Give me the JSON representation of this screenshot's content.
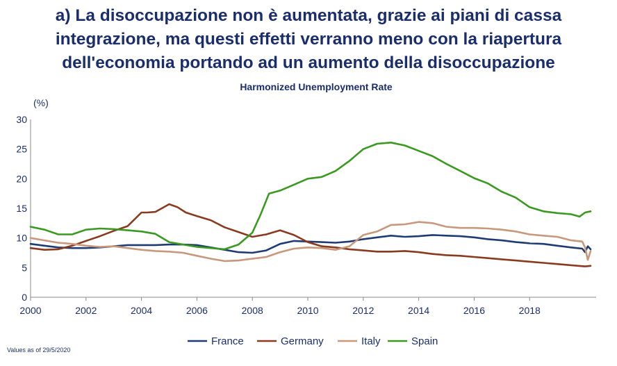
{
  "headline": {
    "line1": "a) La disoccupazione non è aumentata, grazie ai piani di cassa",
    "line2": "integrazione, ma questi effetti verranno meno con la riapertura",
    "line3": "dell'economia portando ad un aumento della disoccupazione"
  },
  "footnote": "Values as of 29/5/2020",
  "chart_data": {
    "type": "line",
    "title": "Harmonized Unemployment Rate",
    "ylabel": "(%)",
    "xlabel": "",
    "xlim": [
      2000,
      2020.4
    ],
    "ylim": [
      0,
      30
    ],
    "y_ticks": [
      0,
      5,
      10,
      15,
      20,
      25,
      30
    ],
    "x_ticks": [
      2000,
      2002,
      2004,
      2006,
      2008,
      2010,
      2012,
      2014,
      2016,
      2018
    ],
    "x_tick_labels": [
      "2000",
      "2002",
      "2004",
      "2006",
      "2008",
      "2010",
      "2012",
      "2014",
      "2016",
      "2018"
    ],
    "grid": false,
    "legend_position": "bottom",
    "series": [
      {
        "name": "France",
        "color": "#1f3b73",
        "x": [
          2000,
          2000.5,
          2001,
          2001.5,
          2002,
          2002.5,
          2003,
          2003.5,
          2004,
          2004.5,
          2005,
          2005.5,
          2006,
          2006.5,
          2007,
          2007.5,
          2008,
          2008.5,
          2009,
          2009.5,
          2010,
          2010.5,
          2011,
          2011.5,
          2012,
          2012.5,
          2013,
          2013.5,
          2014,
          2014.5,
          2015,
          2015.5,
          2016,
          2016.5,
          2017,
          2017.5,
          2018,
          2018.5,
          2019,
          2019.5,
          2019.9,
          2020.0,
          2020.1,
          2020.2
        ],
        "y": [
          9.0,
          8.7,
          8.4,
          8.3,
          8.3,
          8.4,
          8.6,
          8.8,
          8.8,
          8.8,
          8.9,
          8.9,
          8.8,
          8.4,
          8.0,
          7.6,
          7.5,
          7.9,
          9.0,
          9.5,
          9.4,
          9.3,
          9.2,
          9.4,
          9.8,
          10.1,
          10.4,
          10.2,
          10.3,
          10.5,
          10.4,
          10.3,
          10.1,
          9.8,
          9.6,
          9.3,
          9.1,
          9.0,
          8.7,
          8.4,
          8.2,
          7.6,
          8.6,
          8.1
        ]
      },
      {
        "name": "Germany",
        "color": "#8a3a1e",
        "x": [
          2000,
          2000.5,
          2001,
          2001.5,
          2002,
          2002.5,
          2003,
          2003.5,
          2004,
          2004.2,
          2004.5,
          2005,
          2005.3,
          2005.6,
          2006,
          2006.5,
          2007,
          2007.5,
          2008,
          2008.5,
          2009,
          2009.5,
          2010,
          2010.5,
          2011,
          2011.5,
          2012,
          2012.5,
          2013,
          2013.5,
          2014,
          2014.5,
          2015,
          2015.5,
          2016,
          2016.5,
          2017,
          2017.5,
          2018,
          2018.5,
          2019,
          2019.5,
          2020.0,
          2020.2
        ],
        "y": [
          8.3,
          8.0,
          8.1,
          8.7,
          9.5,
          10.3,
          11.2,
          12.0,
          14.3,
          14.3,
          14.4,
          15.7,
          15.2,
          14.3,
          13.7,
          13.0,
          11.8,
          11.0,
          10.2,
          10.6,
          11.3,
          10.5,
          9.3,
          8.6,
          8.4,
          8.1,
          7.9,
          7.7,
          7.7,
          7.8,
          7.6,
          7.3,
          7.1,
          7.0,
          6.8,
          6.6,
          6.4,
          6.2,
          6.0,
          5.8,
          5.6,
          5.4,
          5.2,
          5.3
        ]
      },
      {
        "name": "Italy",
        "color": "#c8977c",
        "x": [
          2000,
          2000.5,
          2001,
          2001.5,
          2002,
          2002.5,
          2003,
          2003.5,
          2004,
          2004.5,
          2005,
          2005.5,
          2006,
          2006.5,
          2007,
          2007.5,
          2008,
          2008.5,
          2009,
          2009.5,
          2010,
          2010.5,
          2011,
          2011.5,
          2012,
          2012.5,
          2013,
          2013.5,
          2014,
          2014.5,
          2015,
          2015.5,
          2016,
          2016.5,
          2017,
          2017.5,
          2018,
          2018.5,
          2019,
          2019.5,
          2019.9,
          2020.0,
          2020.1,
          2020.2
        ],
        "y": [
          10.0,
          9.6,
          9.2,
          9.0,
          8.7,
          8.5,
          8.6,
          8.3,
          8.0,
          7.8,
          7.7,
          7.5,
          7.0,
          6.5,
          6.1,
          6.2,
          6.5,
          6.8,
          7.6,
          8.2,
          8.4,
          8.3,
          8.0,
          8.6,
          10.5,
          11.1,
          12.2,
          12.3,
          12.7,
          12.5,
          11.9,
          11.7,
          11.7,
          11.6,
          11.4,
          11.1,
          10.6,
          10.4,
          10.2,
          9.6,
          9.4,
          8.4,
          6.3,
          7.8
        ]
      },
      {
        "name": "Spain",
        "color": "#3a9a1f",
        "x": [
          2000,
          2000.5,
          2001,
          2001.5,
          2002,
          2002.5,
          2003,
          2003.5,
          2004,
          2004.5,
          2005,
          2005.5,
          2006,
          2006.5,
          2007,
          2007.5,
          2008,
          2008.3,
          2008.6,
          2009,
          2009.5,
          2010,
          2010.5,
          2011,
          2011.5,
          2012,
          2012.5,
          2013,
          2013.5,
          2014,
          2014.5,
          2015,
          2015.5,
          2016,
          2016.5,
          2017,
          2017.5,
          2018,
          2018.5,
          2019,
          2019.5,
          2019.8,
          2020.0,
          2020.2
        ],
        "y": [
          11.9,
          11.4,
          10.6,
          10.6,
          11.4,
          11.6,
          11.5,
          11.3,
          11.1,
          10.7,
          9.3,
          8.9,
          8.5,
          8.3,
          8.1,
          8.9,
          10.9,
          14.0,
          17.5,
          18.0,
          19.0,
          20.0,
          20.3,
          21.3,
          23.0,
          25.0,
          25.9,
          26.1,
          25.6,
          24.7,
          23.8,
          22.5,
          21.3,
          20.1,
          19.2,
          17.8,
          16.8,
          15.2,
          14.5,
          14.2,
          14.0,
          13.6,
          14.3,
          14.5
        ]
      }
    ]
  }
}
